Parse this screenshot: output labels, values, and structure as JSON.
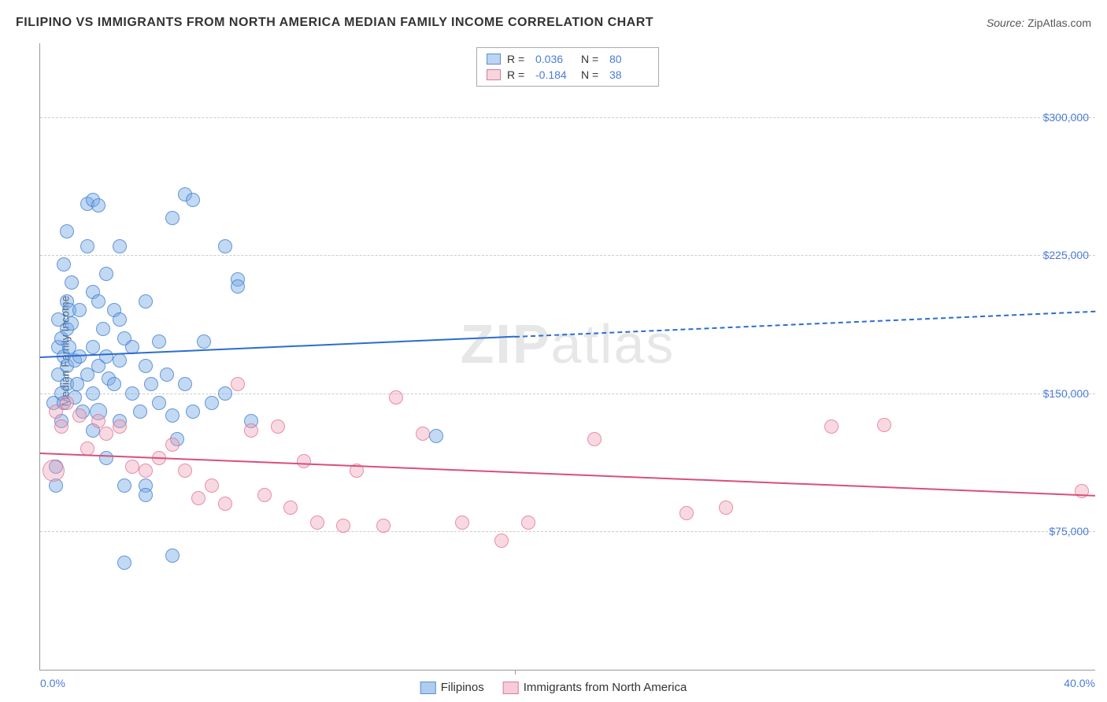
{
  "header": {
    "title": "FILIPINO VS IMMIGRANTS FROM NORTH AMERICA MEDIAN FAMILY INCOME CORRELATION CHART",
    "source_label": "Source:",
    "source_value": "ZipAtlas.com"
  },
  "chart": {
    "type": "scatter",
    "ylabel": "Median Family Income",
    "background_color": "#ffffff",
    "grid_color": "#cccccc",
    "axis_color": "#999999",
    "tick_color": "#4a7bd8",
    "x_axis": {
      "min": 0.0,
      "max": 40.0,
      "ticks": [
        {
          "value": 0.0,
          "label": "0.0%"
        },
        {
          "value": 40.0,
          "label": "40.0%"
        }
      ],
      "midpoint_mark": 18.0
    },
    "y_axis": {
      "min": 0,
      "max": 340000,
      "ticks": [
        {
          "value": 75000,
          "label": "$75,000"
        },
        {
          "value": 150000,
          "label": "$150,000"
        },
        {
          "value": 225000,
          "label": "$225,000"
        },
        {
          "value": 300000,
          "label": "$300,000"
        }
      ]
    },
    "stats": [
      {
        "r": "0.036",
        "n": "80",
        "fill": "rgba(120,170,230,0.5)",
        "border": "#5a8fd0"
      },
      {
        "r": "-0.184",
        "n": "38",
        "fill": "rgba(240,170,190,0.5)",
        "border": "#d97aa0"
      }
    ],
    "series": [
      {
        "name": "Filipinos",
        "color_fill": "rgba(120,170,230,0.45)",
        "color_border": "rgba(60,120,200,0.7)",
        "legend_fill": "rgba(120,170,230,0.6)",
        "legend_border": "#5a8fd0",
        "marker_radius": 9,
        "trend": {
          "y_start": 170000,
          "y_end": 195000,
          "solid_until": 18.0,
          "color": "#2d6cd0"
        },
        "points": [
          {
            "x": 0.5,
            "y": 145000
          },
          {
            "x": 0.6,
            "y": 110000
          },
          {
            "x": 0.6,
            "y": 100000
          },
          {
            "x": 0.7,
            "y": 190000
          },
          {
            "x": 0.7,
            "y": 175000
          },
          {
            "x": 0.7,
            "y": 160000
          },
          {
            "x": 0.8,
            "y": 180000
          },
          {
            "x": 0.8,
            "y": 150000
          },
          {
            "x": 0.8,
            "y": 135000
          },
          {
            "x": 0.9,
            "y": 220000
          },
          {
            "x": 0.9,
            "y": 170000
          },
          {
            "x": 0.9,
            "y": 145000
          },
          {
            "x": 1.0,
            "y": 238000
          },
          {
            "x": 1.0,
            "y": 200000
          },
          {
            "x": 1.0,
            "y": 185000
          },
          {
            "x": 1.0,
            "y": 165000
          },
          {
            "x": 1.0,
            "y": 155000
          },
          {
            "x": 1.1,
            "y": 195000
          },
          {
            "x": 1.1,
            "y": 175000
          },
          {
            "x": 1.2,
            "y": 210000
          },
          {
            "x": 1.2,
            "y": 188000
          },
          {
            "x": 1.3,
            "y": 168000
          },
          {
            "x": 1.3,
            "y": 148000
          },
          {
            "x": 1.4,
            "y": 155000
          },
          {
            "x": 1.5,
            "y": 195000
          },
          {
            "x": 1.5,
            "y": 170000
          },
          {
            "x": 1.6,
            "y": 140000
          },
          {
            "x": 1.8,
            "y": 253000
          },
          {
            "x": 1.8,
            "y": 230000
          },
          {
            "x": 1.8,
            "y": 160000
          },
          {
            "x": 2.0,
            "y": 255000
          },
          {
            "x": 2.0,
            "y": 205000
          },
          {
            "x": 2.0,
            "y": 175000
          },
          {
            "x": 2.0,
            "y": 150000
          },
          {
            "x": 2.0,
            "y": 130000
          },
          {
            "x": 2.2,
            "y": 252000
          },
          {
            "x": 2.2,
            "y": 200000
          },
          {
            "x": 2.2,
            "y": 165000
          },
          {
            "x": 2.2,
            "y": 140000,
            "r": 11
          },
          {
            "x": 2.4,
            "y": 185000
          },
          {
            "x": 2.5,
            "y": 215000
          },
          {
            "x": 2.5,
            "y": 170000
          },
          {
            "x": 2.5,
            "y": 115000
          },
          {
            "x": 2.6,
            "y": 158000
          },
          {
            "x": 2.8,
            "y": 195000
          },
          {
            "x": 2.8,
            "y": 155000
          },
          {
            "x": 3.0,
            "y": 230000
          },
          {
            "x": 3.0,
            "y": 190000
          },
          {
            "x": 3.0,
            "y": 168000
          },
          {
            "x": 3.0,
            "y": 135000
          },
          {
            "x": 3.2,
            "y": 180000
          },
          {
            "x": 3.2,
            "y": 100000
          },
          {
            "x": 3.2,
            "y": 58000
          },
          {
            "x": 3.5,
            "y": 175000
          },
          {
            "x": 3.5,
            "y": 150000
          },
          {
            "x": 3.8,
            "y": 140000
          },
          {
            "x": 4.0,
            "y": 200000
          },
          {
            "x": 4.0,
            "y": 165000
          },
          {
            "x": 4.0,
            "y": 100000
          },
          {
            "x": 4.0,
            "y": 95000
          },
          {
            "x": 4.2,
            "y": 155000
          },
          {
            "x": 4.5,
            "y": 178000
          },
          {
            "x": 4.5,
            "y": 145000
          },
          {
            "x": 4.8,
            "y": 160000
          },
          {
            "x": 5.0,
            "y": 138000
          },
          {
            "x": 5.0,
            "y": 62000
          },
          {
            "x": 5.2,
            "y": 125000
          },
          {
            "x": 5.5,
            "y": 258000
          },
          {
            "x": 5.5,
            "y": 155000
          },
          {
            "x": 5.8,
            "y": 255000
          },
          {
            "x": 5.8,
            "y": 140000
          },
          {
            "x": 6.2,
            "y": 178000
          },
          {
            "x": 6.5,
            "y": 145000
          },
          {
            "x": 7.0,
            "y": 230000
          },
          {
            "x": 7.0,
            "y": 150000
          },
          {
            "x": 7.5,
            "y": 212000
          },
          {
            "x": 7.5,
            "y": 208000
          },
          {
            "x": 8.0,
            "y": 135000
          },
          {
            "x": 15.0,
            "y": 127000
          },
          {
            "x": 5.0,
            "y": 245000
          }
        ]
      },
      {
        "name": "Immigrants from North America",
        "color_fill": "rgba(240,160,180,0.4)",
        "color_border": "rgba(220,100,140,0.65)",
        "legend_fill": "rgba(240,170,190,0.6)",
        "legend_border": "#d97aa0",
        "marker_radius": 9,
        "trend": {
          "y_start": 118000,
          "y_end": 95000,
          "solid_until": 40.0,
          "color": "#d94f7a"
        },
        "points": [
          {
            "x": 0.5,
            "y": 108000,
            "r": 14
          },
          {
            "x": 0.6,
            "y": 140000
          },
          {
            "x": 0.8,
            "y": 132000
          },
          {
            "x": 1.0,
            "y": 145000
          },
          {
            "x": 1.5,
            "y": 138000
          },
          {
            "x": 1.8,
            "y": 120000
          },
          {
            "x": 2.2,
            "y": 135000
          },
          {
            "x": 2.5,
            "y": 128000
          },
          {
            "x": 3.0,
            "y": 132000
          },
          {
            "x": 3.5,
            "y": 110000
          },
          {
            "x": 4.0,
            "y": 108000
          },
          {
            "x": 4.5,
            "y": 115000
          },
          {
            "x": 5.0,
            "y": 122000
          },
          {
            "x": 5.5,
            "y": 108000
          },
          {
            "x": 6.0,
            "y": 93000
          },
          {
            "x": 6.5,
            "y": 100000
          },
          {
            "x": 7.0,
            "y": 90000
          },
          {
            "x": 7.5,
            "y": 155000
          },
          {
            "x": 8.0,
            "y": 130000
          },
          {
            "x": 8.5,
            "y": 95000
          },
          {
            "x": 9.0,
            "y": 132000
          },
          {
            "x": 9.5,
            "y": 88000
          },
          {
            "x": 10.0,
            "y": 113000
          },
          {
            "x": 10.5,
            "y": 80000
          },
          {
            "x": 11.5,
            "y": 78000
          },
          {
            "x": 12.0,
            "y": 108000
          },
          {
            "x": 13.0,
            "y": 78000
          },
          {
            "x": 13.5,
            "y": 148000
          },
          {
            "x": 14.5,
            "y": 128000
          },
          {
            "x": 16.0,
            "y": 80000
          },
          {
            "x": 17.5,
            "y": 70000
          },
          {
            "x": 18.5,
            "y": 80000
          },
          {
            "x": 21.0,
            "y": 125000
          },
          {
            "x": 24.5,
            "y": 85000
          },
          {
            "x": 26.0,
            "y": 88000
          },
          {
            "x": 30.0,
            "y": 132000
          },
          {
            "x": 32.0,
            "y": 133000
          },
          {
            "x": 39.5,
            "y": 97000
          }
        ]
      }
    ],
    "legend": [
      {
        "label": "Filipinos",
        "fill": "rgba(120,170,230,0.6)",
        "border": "#5a8fd0"
      },
      {
        "label": "Immigrants from North America",
        "fill": "rgba(240,170,190,0.6)",
        "border": "#d97aa0"
      }
    ],
    "watermark": {
      "part1": "ZIP",
      "part2": "atlas"
    }
  }
}
